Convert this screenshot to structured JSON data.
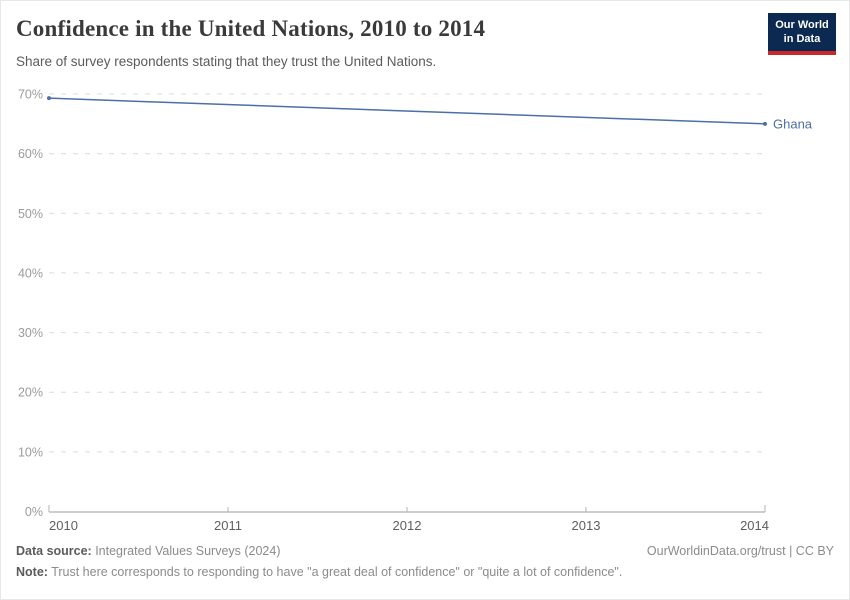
{
  "header": {
    "title": "Confidence in the United Nations, 2010 to 2014",
    "subtitle": "Share of survey respondents stating that they trust the United Nations.",
    "logo": {
      "line1": "Our World",
      "line2": "in Data",
      "bg_color": "#0c2a51",
      "bar_color": "#c5292a"
    }
  },
  "chart_data": {
    "type": "line",
    "title": "Confidence in the United Nations, 2010 to 2014",
    "xlabel": "",
    "ylabel": "",
    "xlim": [
      2010,
      2014
    ],
    "ylim": [
      0,
      70
    ],
    "grid": "horizontal-dashed",
    "legend_position": "end-of-line",
    "x_ticks": [
      {
        "value": 2010,
        "label": "2010"
      },
      {
        "value": 2011,
        "label": "2011"
      },
      {
        "value": 2012,
        "label": "2012"
      },
      {
        "value": 2013,
        "label": "2013"
      },
      {
        "value": 2014,
        "label": "2014"
      }
    ],
    "y_ticks": [
      {
        "value": 0,
        "label": "0%"
      },
      {
        "value": 10,
        "label": "10%"
      },
      {
        "value": 20,
        "label": "20%"
      },
      {
        "value": 30,
        "label": "30%"
      },
      {
        "value": 40,
        "label": "40%"
      },
      {
        "value": 50,
        "label": "50%"
      },
      {
        "value": 60,
        "label": "60%"
      },
      {
        "value": 70,
        "label": "70%"
      }
    ],
    "series": [
      {
        "name": "Ghana",
        "color": "#4c6fa5",
        "points": [
          {
            "x": 2010,
            "y": 69.3
          },
          {
            "x": 2014,
            "y": 65
          }
        ]
      }
    ]
  },
  "colors": {
    "accent_line": "#4c6fa5",
    "gridline": "#dcdcdc",
    "axis": "#9e9e9e",
    "tick_mark": "#b3b3b3"
  },
  "footer": {
    "data_source_label": "Data source:",
    "data_source_value": " Integrated Values Surveys (2024)",
    "attribution": "OurWorldinData.org/trust | CC BY",
    "note_label": "Note:",
    "note_value": " Trust here corresponds to responding to have \"a great deal of confidence\" or \"quite a lot of confidence\"."
  }
}
